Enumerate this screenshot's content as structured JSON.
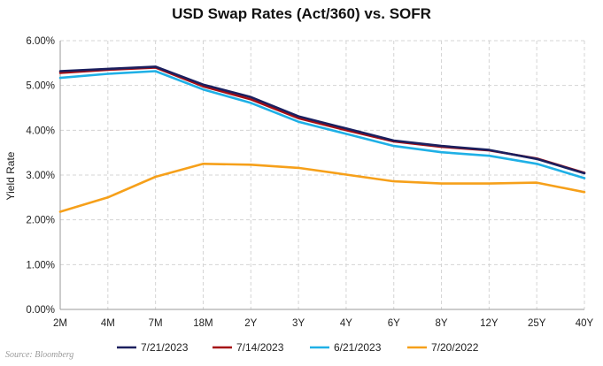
{
  "chart_data": {
    "type": "line",
    "title": "USD Swap Rates (Act/360) vs. SOFR",
    "ylabel": "Yield Rate",
    "xlabel": "",
    "categories": [
      "2M",
      "4M",
      "7M",
      "18M",
      "2Y",
      "3Y",
      "4Y",
      "6Y",
      "8Y",
      "12Y",
      "25Y",
      "40Y"
    ],
    "ylim": [
      0,
      6
    ],
    "yticks": [
      "0.00%",
      "1.00%",
      "2.00%",
      "3.00%",
      "4.00%",
      "5.00%",
      "6.00%"
    ],
    "grid": true,
    "legend_position": "bottom",
    "series": [
      {
        "name": "7/21/2023",
        "color": "#1b1f5e",
        "values": [
          5.32,
          5.37,
          5.42,
          5.02,
          4.74,
          4.31,
          4.04,
          3.77,
          3.65,
          3.56,
          3.36,
          3.04
        ]
      },
      {
        "name": "7/14/2023",
        "color": "#a50f15",
        "values": [
          5.28,
          5.35,
          5.4,
          4.98,
          4.69,
          4.27,
          4.0,
          3.75,
          3.63,
          3.55,
          3.37,
          3.05
        ]
      },
      {
        "name": "6/21/2023",
        "color": "#1fb0e6",
        "values": [
          5.17,
          5.26,
          5.32,
          4.91,
          4.61,
          4.19,
          3.92,
          3.65,
          3.51,
          3.43,
          3.25,
          2.93
        ]
      },
      {
        "name": "7/20/2022",
        "color": "#f6a01a",
        "values": [
          2.18,
          2.5,
          2.96,
          3.25,
          3.23,
          3.16,
          3.01,
          2.86,
          2.81,
          2.81,
          2.83,
          2.62
        ]
      }
    ]
  },
  "source": "Source: Bloomberg"
}
